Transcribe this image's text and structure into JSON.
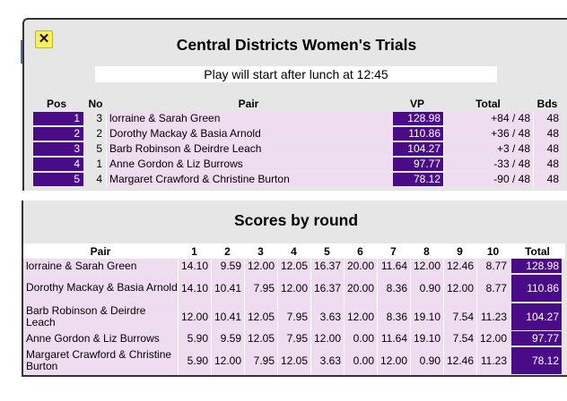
{
  "header": {
    "close_label": "✕",
    "title": "Central Districts Women's Trials",
    "notice": "Play will start after lunch at 12:45"
  },
  "rankings": {
    "columns": [
      "Pos",
      "No",
      "Pair",
      "VP",
      "Total",
      "Bds"
    ],
    "rows": [
      {
        "pos": "1",
        "no": "3",
        "pair": "lorraine & Sarah Green",
        "vp": "128.98",
        "total": "+84 / 48",
        "bds": "48"
      },
      {
        "pos": "2",
        "no": "2",
        "pair": "Dorothy Mackay & Basia Arnold",
        "vp": "110.86",
        "total": "+36 / 48",
        "bds": "48"
      },
      {
        "pos": "3",
        "no": "5",
        "pair": "Barb Robinson & Deirdre Leach",
        "vp": "104.27",
        "total": "+3 / 48",
        "bds": "48"
      },
      {
        "pos": "4",
        "no": "1",
        "pair": "Anne Gordon & Liz Burrows",
        "vp": "97.77",
        "total": "-33 / 48",
        "bds": "48"
      },
      {
        "pos": "5",
        "no": "4",
        "pair": "Margaret Crawford & Christine Burton",
        "vp": "78.12",
        "total": "-90 / 48",
        "bds": "48"
      }
    ]
  },
  "scores": {
    "title": "Scores by round",
    "columns": [
      "Pair",
      "1",
      "2",
      "3",
      "4",
      "5",
      "6",
      "7",
      "8",
      "9",
      "10",
      "Total"
    ],
    "rows": [
      {
        "pair": "lorraine & Sarah Green",
        "rounds": [
          "14.10",
          "9.59",
          "12.00",
          "12.05",
          "16.37",
          "20.00",
          "11.64",
          "12.00",
          "12.46",
          "8.77"
        ],
        "total": "128.98"
      },
      {
        "pair": "Dorothy Mackay & Basia Arnold",
        "rounds": [
          "14.10",
          "10.41",
          "7.95",
          "12.00",
          "16.37",
          "20.00",
          "8.36",
          "0.90",
          "12.00",
          "8.77"
        ],
        "total": "110.86"
      },
      {
        "pair": "Barb Robinson & Deirdre Leach",
        "rounds": [
          "12.00",
          "10.41",
          "12.05",
          "7.95",
          "3.63",
          "12.00",
          "8.36",
          "19.10",
          "7.54",
          "11.23"
        ],
        "total": "104.27"
      },
      {
        "pair": "Anne Gordon & Liz Burrows",
        "rounds": [
          "5.90",
          "9.59",
          "12.05",
          "7.95",
          "12.00",
          "0.00",
          "11.64",
          "19.10",
          "7.54",
          "12.00"
        ],
        "total": "97.77"
      },
      {
        "pair": "Margaret Crawford & Christine Burton",
        "rounds": [
          "5.90",
          "12.00",
          "7.95",
          "12.05",
          "3.63",
          "0.00",
          "12.00",
          "0.90",
          "12.46",
          "11.23"
        ],
        "total": "78.12"
      }
    ]
  },
  "colors": {
    "accent": "#4a0c86",
    "row_bg": "#f0dcf0",
    "panel_bg": "#e6e6e6",
    "close_button": "#f7ee5b"
  }
}
